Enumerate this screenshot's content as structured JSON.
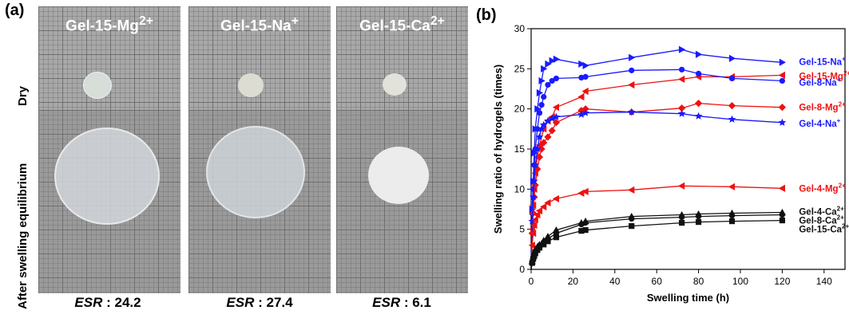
{
  "panels": {
    "a_label": "(a)",
    "b_label": "(b)",
    "row_labels": [
      "Dry",
      "After swelling equilibrium"
    ],
    "columns": [
      {
        "base": "Gel-15-Mg",
        "sup": "2+",
        "esr_key": "ESR",
        "esr_sep": " : ",
        "esr_value": "24.2"
      },
      {
        "base": "Gel-15-Na",
        "sup": "+",
        "esr_key": "ESR",
        "esr_sep": " : ",
        "esr_value": "27.4"
      },
      {
        "base": "Gel-15-Ca",
        "sup": "2+",
        "esr_key": "ESR",
        "esr_sep": " : ",
        "esr_value": "6.1"
      }
    ]
  },
  "chart_data": {
    "type": "line",
    "xlabel": "Swelling time (h)",
    "ylabel": "Swelling ratio of hydrogels (times)",
    "xlim": [
      0,
      150
    ],
    "ylim": [
      0,
      30
    ],
    "xticks": [
      0,
      20,
      40,
      60,
      80,
      100,
      120,
      140
    ],
    "yticks": [
      0,
      5,
      10,
      15,
      20,
      25,
      30
    ],
    "grid": false,
    "legend": "right, inline labels next to line ends",
    "series": [
      {
        "name": "Gel-15-Na+",
        "base": "Gel-15-Na",
        "sup": "+",
        "color": "#1a1aff",
        "marker": "triangle-right",
        "points": [
          [
            0,
            0
          ],
          [
            0.5,
            7.5
          ],
          [
            1,
            11
          ],
          [
            1.5,
            14.5
          ],
          [
            2,
            17.5
          ],
          [
            3,
            20
          ],
          [
            4,
            22
          ],
          [
            5,
            23.5
          ],
          [
            6,
            25
          ],
          [
            8,
            25.6
          ],
          [
            10,
            26
          ],
          [
            12,
            26.2
          ],
          [
            24,
            25.6
          ],
          [
            26,
            25.4
          ],
          [
            48,
            26.4
          ],
          [
            72,
            27.4
          ],
          [
            80,
            26.8
          ],
          [
            96,
            26.3
          ],
          [
            120,
            25.8
          ]
        ]
      },
      {
        "name": "Gel-15-Mg2+",
        "base": "Gel-15-Mg",
        "sup": "2+",
        "color": "#ee1111",
        "marker": "triangle-left",
        "points": [
          [
            0,
            0
          ],
          [
            0.5,
            5
          ],
          [
            1,
            8
          ],
          [
            1.5,
            10
          ],
          [
            2,
            12
          ],
          [
            3,
            14
          ],
          [
            4,
            15.5
          ],
          [
            6,
            17.5
          ],
          [
            8,
            18.5
          ],
          [
            10,
            19
          ],
          [
            12,
            20.2
          ],
          [
            24,
            21.5
          ],
          [
            26,
            22.2
          ],
          [
            48,
            23
          ],
          [
            72,
            23.7
          ],
          [
            80,
            24
          ],
          [
            96,
            24
          ],
          [
            120,
            24.2
          ]
        ]
      },
      {
        "name": "Gel-8-Na+",
        "base": "Gel-8-Na",
        "sup": "+",
        "color": "#1a1aff",
        "marker": "circle",
        "points": [
          [
            0,
            0
          ],
          [
            0.5,
            7
          ],
          [
            1,
            10
          ],
          [
            1.5,
            13
          ],
          [
            2,
            15
          ],
          [
            3,
            17.5
          ],
          [
            4,
            19.5
          ],
          [
            5,
            20.5
          ],
          [
            6,
            21.5
          ],
          [
            8,
            23
          ],
          [
            10,
            23.5
          ],
          [
            12,
            23.8
          ],
          [
            24,
            23.9
          ],
          [
            26,
            24
          ],
          [
            48,
            24.8
          ],
          [
            72,
            24.9
          ],
          [
            80,
            24.4
          ],
          [
            96,
            23.8
          ],
          [
            120,
            23.5
          ]
        ]
      },
      {
        "name": "Gel-8-Mg2+",
        "base": "Gel-8-Mg",
        "sup": "2+",
        "color": "#ee1111",
        "marker": "diamond",
        "points": [
          [
            0,
            0
          ],
          [
            0.5,
            4.5
          ],
          [
            1,
            7
          ],
          [
            1.5,
            9
          ],
          [
            2,
            10.5
          ],
          [
            3,
            12.5
          ],
          [
            4,
            14
          ],
          [
            5,
            15
          ],
          [
            6,
            15.8
          ],
          [
            8,
            16.5
          ],
          [
            10,
            17.3
          ],
          [
            12,
            18.3
          ],
          [
            24,
            19.8
          ],
          [
            26,
            20
          ],
          [
            48,
            19.6
          ],
          [
            72,
            20.1
          ],
          [
            80,
            20.7
          ],
          [
            96,
            20.4
          ],
          [
            120,
            20.2
          ]
        ]
      },
      {
        "name": "Gel-4-Na+",
        "base": "Gel-4-Na",
        "sup": "+",
        "color": "#1a1aff",
        "marker": "star",
        "points": [
          [
            0,
            0
          ],
          [
            0.5,
            6
          ],
          [
            1,
            9
          ],
          [
            1.5,
            11
          ],
          [
            2,
            13
          ],
          [
            3,
            15
          ],
          [
            4,
            16.5
          ],
          [
            5,
            17.5
          ],
          [
            6,
            18
          ],
          [
            8,
            18.5
          ],
          [
            10,
            18.8
          ],
          [
            12,
            19
          ],
          [
            24,
            19.3
          ],
          [
            26,
            19.5
          ],
          [
            48,
            19.6
          ],
          [
            72,
            19.4
          ],
          [
            80,
            19.1
          ],
          [
            96,
            18.7
          ],
          [
            120,
            18.3
          ]
        ]
      },
      {
        "name": "Gel-4-Mg2+",
        "base": "Gel-4-Mg",
        "sup": "2+",
        "color": "#ee1111",
        "marker": "triangle-left",
        "points": [
          [
            0,
            0
          ],
          [
            0.5,
            3
          ],
          [
            1,
            4.5
          ],
          [
            1.5,
            5.5
          ],
          [
            2,
            6.2
          ],
          [
            3,
            6.8
          ],
          [
            4,
            7.3
          ],
          [
            6,
            7.8
          ],
          [
            8,
            8.3
          ],
          [
            12,
            8.8
          ],
          [
            24,
            9.5
          ],
          [
            26,
            9.7
          ],
          [
            48,
            9.9
          ],
          [
            72,
            10.4
          ],
          [
            96,
            10.3
          ],
          [
            120,
            10.1
          ]
        ]
      },
      {
        "name": "Gel-4-Ca2+",
        "base": "Gel-4-Ca",
        "sup": "2+",
        "color": "#111111",
        "marker": "triangle-up",
        "points": [
          [
            0,
            0
          ],
          [
            0.5,
            1
          ],
          [
            1,
            1.6
          ],
          [
            1.5,
            2
          ],
          [
            2,
            2.4
          ],
          [
            3,
            2.8
          ],
          [
            4,
            3.1
          ],
          [
            6,
            3.6
          ],
          [
            8,
            4.1
          ],
          [
            12,
            4.9
          ],
          [
            24,
            5.8
          ],
          [
            26,
            6
          ],
          [
            48,
            6.6
          ],
          [
            72,
            6.8
          ],
          [
            80,
            6.9
          ],
          [
            96,
            7
          ],
          [
            120,
            7.1
          ]
        ]
      },
      {
        "name": "Gel-8-Ca2+",
        "base": "Gel-8-Ca",
        "sup": "2+",
        "color": "#111111",
        "marker": "circle",
        "points": [
          [
            0,
            0
          ],
          [
            0.5,
            0.9
          ],
          [
            1,
            1.5
          ],
          [
            1.5,
            1.9
          ],
          [
            2,
            2.3
          ],
          [
            3,
            2.7
          ],
          [
            4,
            3
          ],
          [
            6,
            3.4
          ],
          [
            8,
            3.8
          ],
          [
            12,
            4.5
          ],
          [
            24,
            5.6
          ],
          [
            26,
            5.8
          ],
          [
            48,
            6.3
          ],
          [
            72,
            6.5
          ],
          [
            80,
            6.6
          ],
          [
            96,
            6.7
          ],
          [
            120,
            6.8
          ]
        ]
      },
      {
        "name": "Gel-15-Ca2+",
        "base": "Gel-15-Ca",
        "sup": "2+",
        "color": "#111111",
        "marker": "square",
        "points": [
          [
            0,
            0
          ],
          [
            0.5,
            0.8
          ],
          [
            1,
            1.3
          ],
          [
            1.5,
            1.7
          ],
          [
            2,
            2
          ],
          [
            3,
            2.4
          ],
          [
            4,
            2.7
          ],
          [
            6,
            3.1
          ],
          [
            8,
            3.5
          ],
          [
            12,
            4
          ],
          [
            24,
            4.8
          ],
          [
            26,
            4.9
          ],
          [
            48,
            5.4
          ],
          [
            72,
            5.8
          ],
          [
            80,
            5.9
          ],
          [
            96,
            6
          ],
          [
            120,
            6.1
          ]
        ]
      }
    ]
  }
}
